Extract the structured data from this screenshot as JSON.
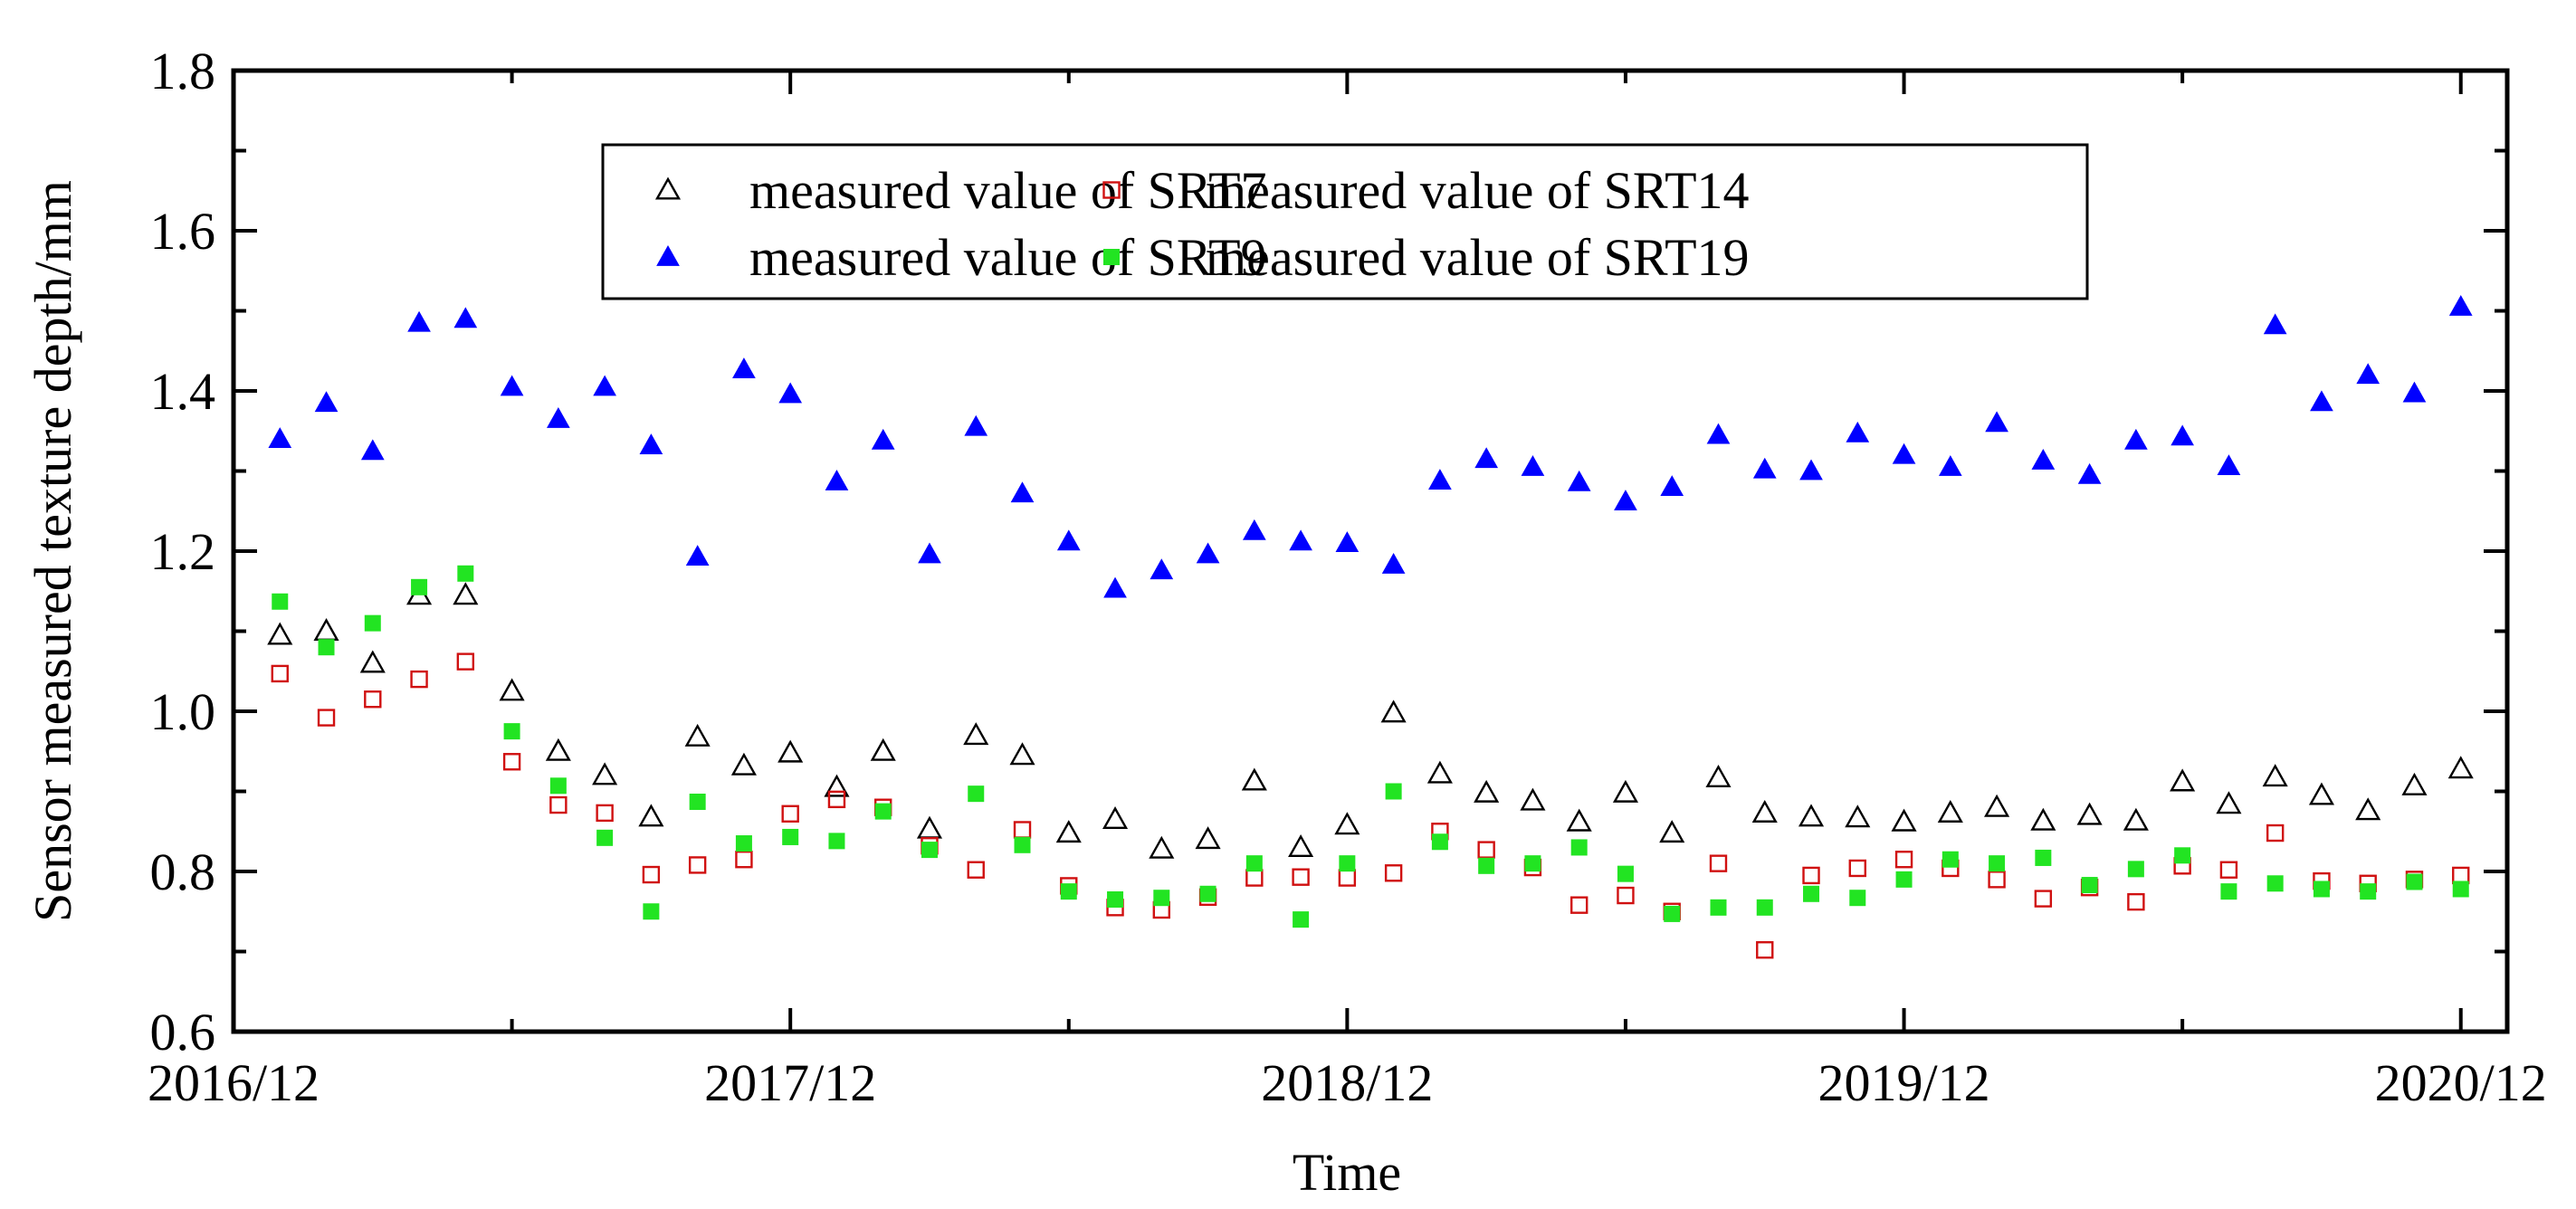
{
  "chart_data": {
    "type": "scatter",
    "xlabel": "Time",
    "ylabel": "Sensor measured texture depth/mm",
    "ylim": [
      0.6,
      1.8
    ],
    "yticks": [
      0.6,
      0.8,
      1.0,
      1.2,
      1.4,
      1.6,
      1.8
    ],
    "ytick_labels": [
      "0.6",
      "0.8",
      "1.0",
      "1.2",
      "1.4",
      "1.6",
      "1.8"
    ],
    "xlim": [
      "2016-12",
      "2021-01"
    ],
    "xtick_labels": [
      "2016/12",
      "2017/12",
      "2018/12",
      "2019/12",
      "2020/12"
    ],
    "x_minor_tick_months": [
      "2017-06",
      "2018-06",
      "2019-06",
      "2020-06"
    ],
    "x_start": "2017-01",
    "x_step": "1 month",
    "x_dates": [
      "2017-01",
      "2017-02",
      "2017-03",
      "2017-04",
      "2017-05",
      "2017-06",
      "2017-07",
      "2017-08",
      "2017-09",
      "2017-10",
      "2017-11",
      "2017-12",
      "2018-01",
      "2018-02",
      "2018-03",
      "2018-04",
      "2018-05",
      "2018-06",
      "2018-07",
      "2018-08",
      "2018-09",
      "2018-10",
      "2018-11",
      "2018-12",
      "2019-01",
      "2019-02",
      "2019-03",
      "2019-04",
      "2019-05",
      "2019-06",
      "2019-07",
      "2019-08",
      "2019-09",
      "2019-10",
      "2019-11",
      "2019-12",
      "2020-01",
      "2020-02",
      "2020-03",
      "2020-04",
      "2020-05",
      "2020-06",
      "2020-07",
      "2020-08",
      "2020-09",
      "2020-10",
      "2020-11",
      "2020-12"
    ],
    "legend_position": "top-center",
    "legend_columns": 2,
    "grid": false,
    "series": [
      {
        "name": "measured value of SRT7",
        "marker": "triangle-open",
        "color": "#000000",
        "values": [
          1.095,
          1.1,
          1.06,
          1.145,
          1.145,
          1.025,
          0.95,
          0.92,
          0.868,
          0.968,
          0.932,
          0.948,
          0.905,
          0.95,
          0.853,
          0.97,
          0.945,
          0.848,
          0.865,
          0.828,
          0.84,
          0.913,
          0.83,
          0.858,
          0.998,
          0.922,
          0.898,
          0.888,
          0.862,
          0.898,
          0.848,
          0.917,
          0.873,
          0.868,
          0.867,
          0.862,
          0.873,
          0.88,
          0.863,
          0.87,
          0.863,
          0.912,
          0.884,
          0.918,
          0.895,
          0.876,
          0.907,
          0.928
        ]
      },
      {
        "name": "measured value of SRT14",
        "marker": "square-open",
        "color": "#d01010",
        "values": [
          1.047,
          0.992,
          1.015,
          1.04,
          1.062,
          0.937,
          0.883,
          0.873,
          0.796,
          0.808,
          0.815,
          0.872,
          0.89,
          0.88,
          0.832,
          0.802,
          0.852,
          0.782,
          0.755,
          0.752,
          0.768,
          0.792,
          0.793,
          0.792,
          0.798,
          0.85,
          0.827,
          0.805,
          0.758,
          0.77,
          0.75,
          0.81,
          0.702,
          0.795,
          0.804,
          0.815,
          0.804,
          0.79,
          0.766,
          0.78,
          0.762,
          0.807,
          0.802,
          0.848,
          0.788,
          0.785,
          0.79,
          0.795
        ]
      },
      {
        "name": "measured value of SRT9",
        "marker": "triangle-filled",
        "color": "#0000ff",
        "values": [
          1.34,
          1.385,
          1.325,
          1.485,
          1.49,
          1.405,
          1.365,
          1.405,
          1.332,
          1.193,
          1.427,
          1.396,
          1.287,
          1.338,
          1.196,
          1.355,
          1.272,
          1.212,
          1.153,
          1.176,
          1.196,
          1.225,
          1.212,
          1.21,
          1.183,
          1.288,
          1.315,
          1.305,
          1.286,
          1.262,
          1.28,
          1.345,
          1.302,
          1.3,
          1.347,
          1.32,
          1.305,
          1.36,
          1.313,
          1.295,
          1.338,
          1.343,
          1.306,
          1.482,
          1.386,
          1.42,
          1.397,
          1.505
        ]
      },
      {
        "name": "measured value of SRT19",
        "marker": "square-filled",
        "color": "#22e422",
        "values": [
          1.137,
          1.08,
          1.11,
          1.155,
          1.172,
          0.975,
          0.907,
          0.842,
          0.75,
          0.887,
          0.835,
          0.843,
          0.838,
          0.875,
          0.827,
          0.897,
          0.833,
          0.775,
          0.765,
          0.767,
          0.772,
          0.81,
          0.74,
          0.81,
          0.9,
          0.837,
          0.807,
          0.81,
          0.83,
          0.797,
          0.747,
          0.755,
          0.755,
          0.772,
          0.767,
          0.79,
          0.815,
          0.81,
          0.817,
          0.783,
          0.803,
          0.82,
          0.775,
          0.785,
          0.778,
          0.775,
          0.787,
          0.778
        ]
      }
    ]
  }
}
